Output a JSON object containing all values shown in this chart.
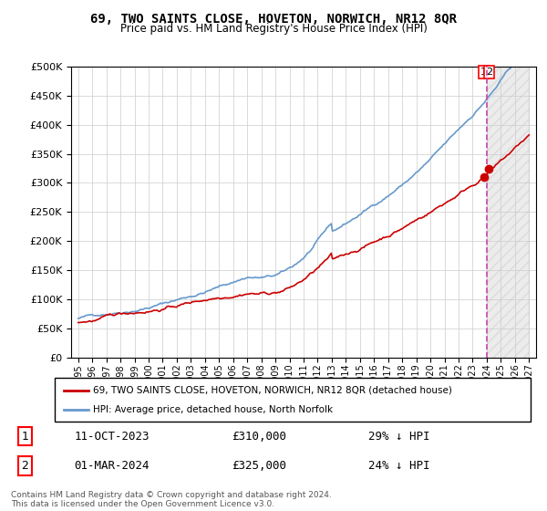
{
  "title": "69, TWO SAINTS CLOSE, HOVETON, NORWICH, NR12 8QR",
  "subtitle": "Price paid vs. HM Land Registry's House Price Index (HPI)",
  "legend_label_red": "69, TWO SAINTS CLOSE, HOVETON, NORWICH, NR12 8QR (detached house)",
  "legend_label_blue": "HPI: Average price, detached house, North Norfolk",
  "transaction1_label": "1",
  "transaction1_date": "11-OCT-2023",
  "transaction1_price": "£310,000",
  "transaction1_hpi": "29% ↓ HPI",
  "transaction2_label": "2",
  "transaction2_date": "01-MAR-2024",
  "transaction2_price": "£325,000",
  "transaction2_hpi": "24% ↓ HPI",
  "footer": "Contains HM Land Registry data © Crown copyright and database right 2024.\nThis data is licensed under the Open Government Licence v3.0.",
  "ylim": [
    0,
    500000
  ],
  "yticks": [
    0,
    50000,
    100000,
    150000,
    200000,
    250000,
    300000,
    350000,
    400000,
    450000,
    500000
  ],
  "hpi_color": "#6699cc",
  "price_color": "#cc0000",
  "vline_color": "#cc44aa",
  "background_color": "#ffffff",
  "grid_color": "#cccccc"
}
